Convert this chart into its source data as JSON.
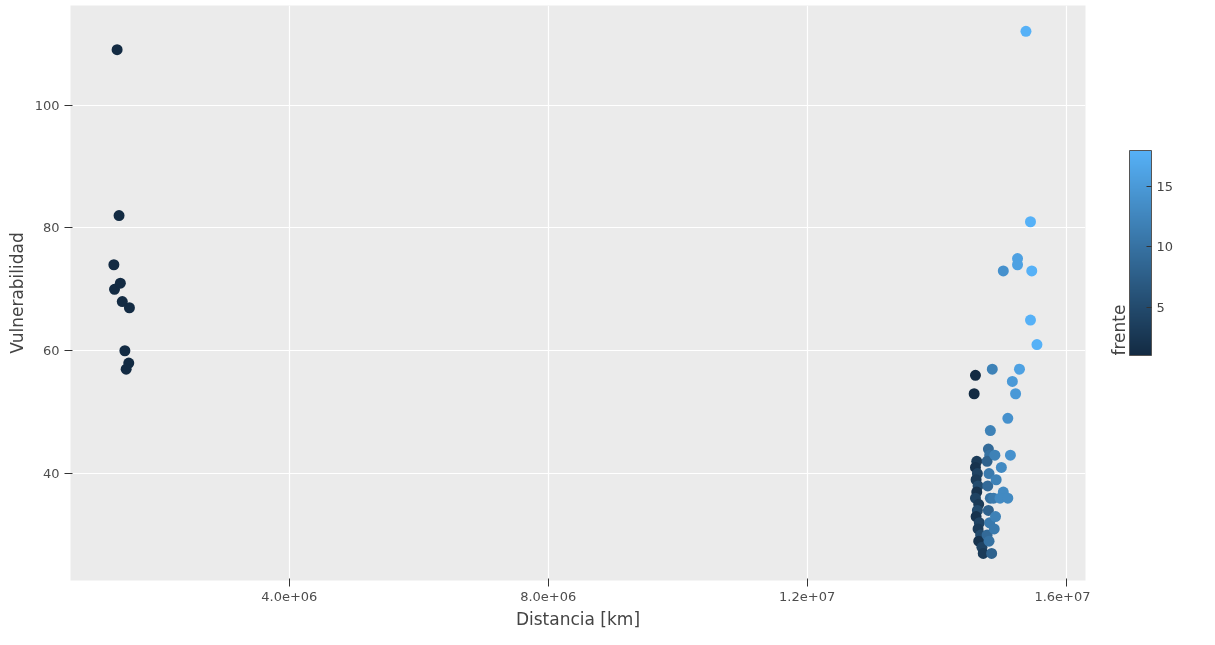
{
  "chart_data": {
    "type": "scatter",
    "xlabel": "Distancia [km]",
    "ylabel": "Vulnerabilidad",
    "clabel": "frente",
    "xlim": [
      620000,
      16300000
    ],
    "ylim": [
      22.6,
      116.2
    ],
    "xticks": [
      {
        "value": 4000000,
        "label": "4.0e+06"
      },
      {
        "value": 8000000,
        "label": "8.0e+06"
      },
      {
        "value": 12000000,
        "label": "1.2e+07"
      },
      {
        "value": 16000000,
        "label": "1.6e+07"
      }
    ],
    "yticks": [
      40,
      60,
      80,
      100
    ],
    "clim": [
      1,
      18
    ],
    "cticks": [
      5,
      10,
      15
    ],
    "grid": true,
    "marker": "circle",
    "series": [
      {
        "x": [
          1340000,
          1370000,
          1290000,
          1300000,
          1390000,
          1420000,
          1530000,
          1460000,
          1520000,
          1480000,
          15380000,
          15450000,
          15250000,
          15250000,
          15030000,
          15470000,
          15450000,
          15550000,
          14860000,
          15280000,
          14600000,
          15170000,
          15220000,
          14580000,
          15100000,
          14830000,
          15140000,
          14620000,
          14600000,
          14630000,
          14610000,
          14640000,
          14620000,
          14600000,
          14650000,
          14630000,
          14610000,
          14660000,
          14640000,
          14680000,
          14650000,
          14700000,
          14720000,
          14800000,
          14820000,
          14780000,
          14810000,
          14790000,
          14830000,
          14800000,
          14820000,
          14780000,
          14810000,
          14850000,
          14900000,
          14920000,
          14880000,
          14910000,
          14890000,
          15000000,
          15030000,
          14980000,
          15100000
        ],
        "values": [
          109,
          82,
          74,
          70,
          71,
          68,
          67,
          60,
          58,
          57,
          112,
          81,
          75,
          74,
          73,
          73,
          65,
          61,
          57,
          57,
          56,
          55,
          53,
          53,
          49,
          47,
          43,
          42,
          41,
          40,
          39,
          38,
          37,
          36,
          35,
          34,
          33,
          32,
          31,
          30,
          29,
          28,
          27,
          44,
          43,
          42,
          40,
          38,
          36,
          34,
          32,
          30,
          29,
          27,
          43,
          39,
          36,
          33,
          31,
          41,
          37,
          36,
          36
        ],
        "cvalues": [
          1,
          1,
          1,
          1,
          1,
          1,
          1,
          1,
          1,
          1,
          18,
          18,
          16,
          16,
          14,
          18,
          18,
          18,
          12,
          16,
          1,
          15,
          15,
          1,
          14,
          12,
          14,
          3,
          2,
          4,
          3,
          5,
          2,
          4,
          3,
          5,
          2,
          4,
          3,
          5,
          2,
          4,
          3,
          9,
          10,
          8,
          11,
          9,
          10,
          8,
          11,
          9,
          10,
          8,
          12,
          12,
          11,
          12,
          11,
          13,
          13,
          13,
          13
        ]
      }
    ]
  }
}
